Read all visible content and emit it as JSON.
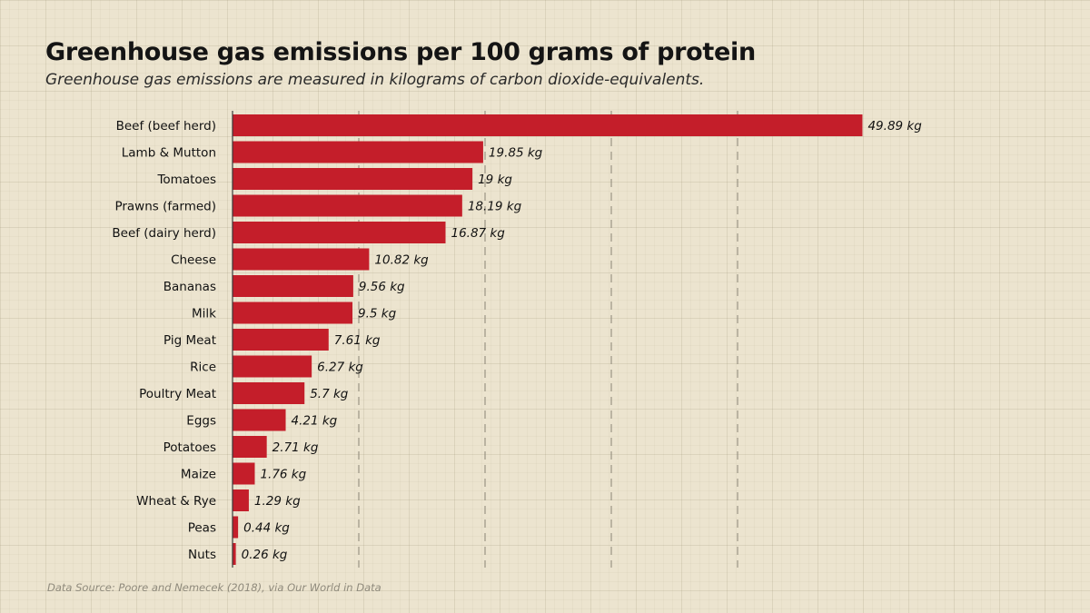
{
  "chart_data": {
    "type": "bar",
    "orientation": "horizontal",
    "title": "Greenhouse gas emissions per 100 grams of protein",
    "subtitle": "Greenhouse gas emissions are measured in kilograms of carbon dioxide-equivalents.",
    "unit_suffix": " kg",
    "categories": [
      "Beef (beef herd)",
      "Lamb & Mutton",
      "Tomatoes",
      "Prawns (farmed)",
      "Beef (dairy herd)",
      "Cheese",
      "Bananas",
      "Milk",
      "Pig Meat",
      "Rice",
      "Poultry Meat",
      "Eggs",
      "Potatoes",
      "Maize",
      "Wheat & Rye",
      "Peas",
      "Nuts"
    ],
    "values": [
      49.89,
      19.85,
      19,
      18.19,
      16.87,
      10.82,
      9.56,
      9.5,
      7.61,
      6.27,
      5.7,
      4.21,
      2.71,
      1.76,
      1.29,
      0.44,
      0.26
    ],
    "value_labels": [
      "49.89 kg",
      "19.85 kg",
      "19 kg",
      "18.19 kg",
      "16.87 kg",
      "10.82 kg",
      "9.56 kg",
      "9.5 kg",
      "7.61 kg",
      "6.27 kg",
      "5.7 kg",
      "4.21 kg",
      "2.71 kg",
      "1.76 kg",
      "1.29 kg",
      "0.44 kg",
      "0.26 kg"
    ],
    "xlim": [
      0,
      50
    ],
    "gridlines_x": [
      10,
      20,
      30,
      40
    ],
    "grid": true,
    "bar_color": "#c41e2a",
    "axis_color": "#3a3a3a",
    "gridline_color": "#8a8576",
    "source": "Data Source:  Poore and Nemecek (2018), via Our World in Data"
  }
}
